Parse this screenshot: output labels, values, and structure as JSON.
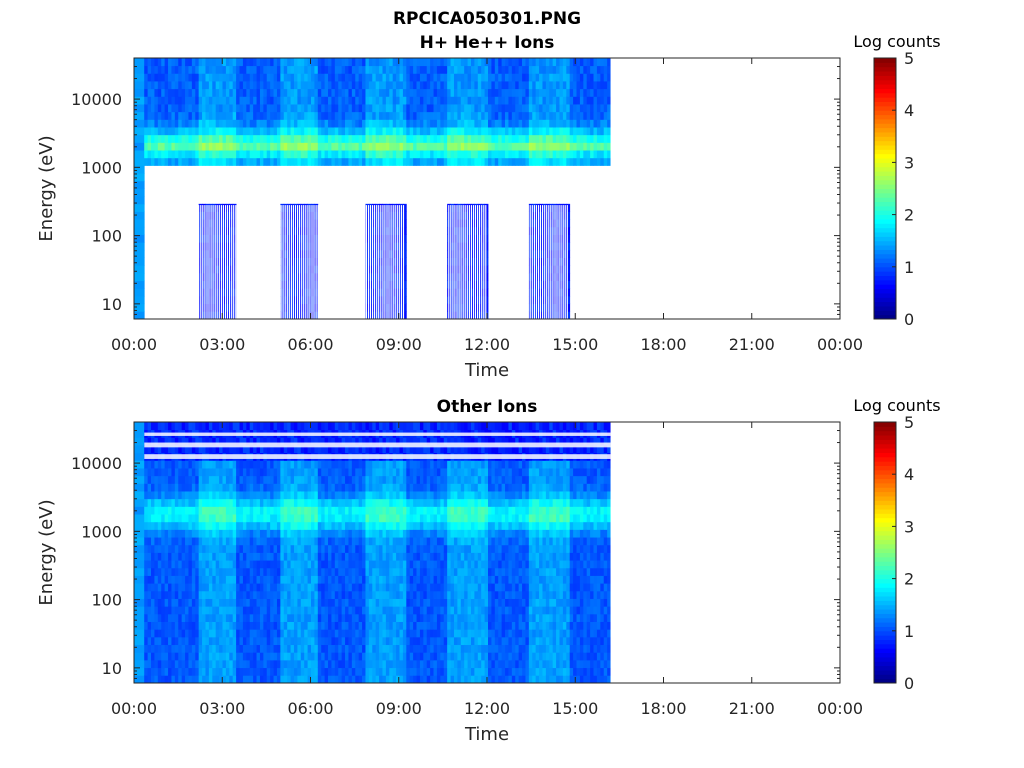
{
  "figure": {
    "title": "RPCICA050301.PNG"
  },
  "chart_data": [
    {
      "type": "heatmap",
      "title": "H+ He++ Ions",
      "xlabel": "Time",
      "ylabel": "Energy (eV)",
      "x_ticks": [
        "00:00",
        "03:00",
        "06:00",
        "09:00",
        "12:00",
        "15:00",
        "18:00",
        "21:00",
        "00:00"
      ],
      "x_range_hours": [
        0,
        24
      ],
      "y_scale": "log",
      "y_range": [
        6,
        40000
      ],
      "y_ticks": [
        {
          "value": 10,
          "label": "10"
        },
        {
          "value": 100,
          "label": "100"
        },
        {
          "value": 1000,
          "label": "1000"
        },
        {
          "value": 10000,
          "label": "10000"
        }
      ],
      "colorbar": {
        "label": "Log counts",
        "min": 0,
        "max": 5,
        "ticks": [
          "0",
          "1",
          "2",
          "3",
          "4",
          "5"
        ],
        "colormap": "jet"
      },
      "data_end_hour": 16.2,
      "high_mode_intervals_hours": [
        [
          2.2,
          3.5
        ],
        [
          5.0,
          6.3
        ],
        [
          7.9,
          9.2
        ],
        [
          10.7,
          12.0
        ],
        [
          13.4,
          14.8
        ]
      ],
      "peak_energy_eV": 1800,
      "peak_log_counts": 2.3
    },
    {
      "type": "heatmap",
      "title": "Other Ions",
      "xlabel": "Time",
      "ylabel": "Energy (eV)",
      "x_ticks": [
        "00:00",
        "03:00",
        "06:00",
        "09:00",
        "12:00",
        "15:00",
        "18:00",
        "21:00",
        "00:00"
      ],
      "x_range_hours": [
        0,
        24
      ],
      "y_scale": "log",
      "y_range": [
        6,
        40000
      ],
      "y_ticks": [
        {
          "value": 10,
          "label": "10"
        },
        {
          "value": 100,
          "label": "100"
        },
        {
          "value": 1000,
          "label": "1000"
        },
        {
          "value": 10000,
          "label": "10000"
        }
      ],
      "colorbar": {
        "label": "Log counts",
        "min": 0,
        "max": 5,
        "ticks": [
          "0",
          "1",
          "2",
          "3",
          "4",
          "5"
        ],
        "colormap": "jet"
      },
      "data_end_hour": 16.2,
      "high_mode_intervals_hours": [
        [
          2.2,
          3.5
        ],
        [
          5.0,
          6.3
        ],
        [
          7.9,
          9.2
        ],
        [
          10.7,
          12.0
        ],
        [
          13.4,
          14.8
        ]
      ],
      "peak_energy_eV": 1800,
      "peak_log_counts": 1.8
    }
  ]
}
